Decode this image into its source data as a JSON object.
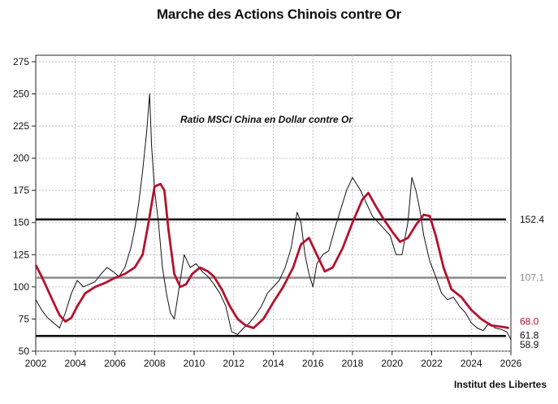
{
  "title": "Marche des Actions Chinois contre Or",
  "source": "Institut des Libertes",
  "chart_data": {
    "type": "line",
    "annotation": "Ratio MSCI China en Dollar contre Or",
    "xlim": [
      2002,
      2026
    ],
    "ylim": [
      50,
      280
    ],
    "x_ticks": [
      2002,
      2004,
      2006,
      2008,
      2010,
      2012,
      2014,
      2016,
      2018,
      2020,
      2022,
      2024,
      2026
    ],
    "y_ticks": [
      50,
      75,
      100,
      125,
      150,
      175,
      200,
      225,
      250,
      275
    ],
    "grid": true,
    "series": [
      {
        "color": "#111111",
        "x": [
          2002.0,
          2002.3,
          2002.6,
          2002.9,
          2003.2,
          2003.5,
          2003.8,
          2004.1,
          2004.4,
          2004.7,
          2005.0,
          2005.3,
          2005.6,
          2005.9,
          2006.2,
          2006.5,
          2006.8,
          2007.0,
          2007.2,
          2007.4,
          2007.6,
          2007.75,
          2007.85,
          2008.0,
          2008.2,
          2008.4,
          2008.6,
          2008.8,
          2009.0,
          2009.2,
          2009.5,
          2009.8,
          2010.1,
          2010.4,
          2010.7,
          2011.0,
          2011.3,
          2011.6,
          2011.9,
          2012.2,
          2012.5,
          2012.8,
          2013.1,
          2013.4,
          2013.7,
          2014.0,
          2014.3,
          2014.6,
          2014.9,
          2015.2,
          2015.4,
          2015.6,
          2015.8,
          2016.0,
          2016.2,
          2016.5,
          2016.8,
          2017.1,
          2017.4,
          2017.7,
          2018.0,
          2018.2,
          2018.4,
          2018.7,
          2019.0,
          2019.3,
          2019.6,
          2019.9,
          2020.2,
          2020.5,
          2020.8,
          2021.0,
          2021.2,
          2021.4,
          2021.6,
          2021.9,
          2022.2,
          2022.5,
          2022.8,
          2023.1,
          2023.4,
          2023.7,
          2024.0,
          2024.3,
          2024.6,
          2024.9,
          2025.2,
          2025.5,
          2025.8,
          2026.0
        ],
        "values": [
          90,
          82,
          76,
          72,
          68,
          80,
          95,
          105,
          100,
          102,
          104,
          110,
          115,
          112,
          108,
          115,
          130,
          145,
          165,
          190,
          220,
          250,
          210,
          175,
          150,
          115,
          95,
          80,
          75,
          95,
          125,
          115,
          118,
          112,
          108,
          102,
          95,
          85,
          65,
          63,
          68,
          72,
          78,
          85,
          95,
          100,
          105,
          115,
          130,
          158,
          150,
          125,
          110,
          100,
          118,
          125,
          128,
          145,
          160,
          175,
          185,
          180,
          175,
          165,
          155,
          150,
          145,
          140,
          125,
          125,
          150,
          185,
          175,
          160,
          140,
          120,
          108,
          95,
          90,
          92,
          85,
          80,
          72,
          68,
          66,
          72,
          68,
          67,
          65,
          59
        ]
      },
      {
        "color": "#b3122e",
        "x": [
          2002.0,
          2002.3,
          2002.6,
          2002.9,
          2003.2,
          2003.5,
          2003.8,
          2004.1,
          2004.5,
          2005.0,
          2005.5,
          2006.0,
          2006.5,
          2007.0,
          2007.4,
          2007.7,
          2008.0,
          2008.3,
          2008.5,
          2008.7,
          2009.0,
          2009.3,
          2009.6,
          2009.9,
          2010.3,
          2010.7,
          2011.0,
          2011.4,
          2011.8,
          2012.2,
          2012.6,
          2013.0,
          2013.5,
          2014.0,
          2014.5,
          2015.0,
          2015.4,
          2015.8,
          2016.2,
          2016.6,
          2017.0,
          2017.5,
          2018.0,
          2018.5,
          2018.8,
          2019.2,
          2019.6,
          2020.0,
          2020.4,
          2020.8,
          2021.2,
          2021.6,
          2021.9,
          2022.2,
          2022.6,
          2023.0,
          2023.5,
          2024.0,
          2024.5,
          2025.0,
          2025.5,
          2025.9
        ],
        "values": [
          117,
          108,
          98,
          88,
          78,
          73,
          76,
          85,
          95,
          100,
          103,
          107,
          110,
          115,
          125,
          150,
          178,
          180,
          175,
          145,
          110,
          100,
          102,
          110,
          115,
          112,
          108,
          98,
          85,
          75,
          70,
          68,
          75,
          88,
          100,
          115,
          133,
          138,
          125,
          112,
          115,
          130,
          150,
          168,
          173,
          162,
          152,
          143,
          135,
          138,
          148,
          156,
          155,
          140,
          115,
          98,
          92,
          82,
          75,
          70,
          69,
          68
        ]
      }
    ],
    "reference_lines": [
      {
        "value": 152.4,
        "label": "152.4",
        "color": "#111111"
      },
      {
        "value": 107.1,
        "label": "107.1",
        "color": "#8c8c8c"
      },
      {
        "value": 61.8,
        "label": "61.8",
        "color": "#111111"
      }
    ],
    "end_labels": [
      {
        "value": 68.0,
        "label": "68.0",
        "color": "#b3122e"
      },
      {
        "value": 58.9,
        "label": "58.9",
        "color": "#111111"
      }
    ]
  }
}
